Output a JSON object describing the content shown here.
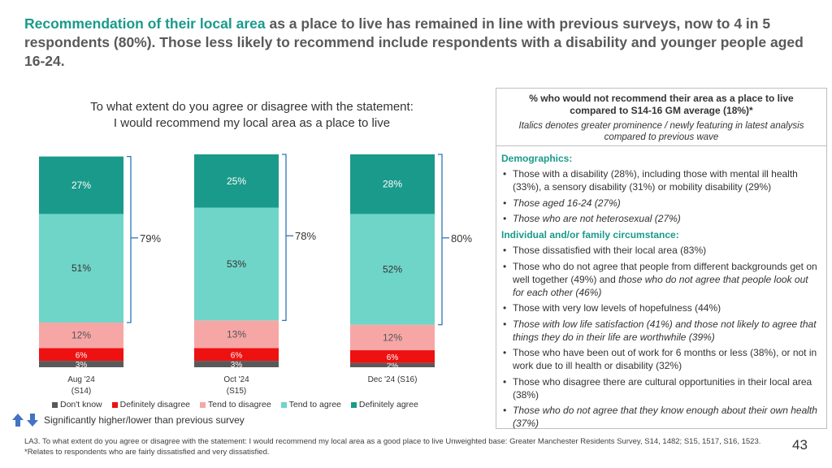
{
  "headline": {
    "accent": "Recommendation of their local area",
    "rest": " as a place to live has remained in line with previous surveys, now to 4 in 5 respondents (80%). Those less likely to recommend include respondents with a disability and younger people aged 16-24."
  },
  "question": {
    "line1": "To what extent do you agree or disagree with the statement:",
    "line2": "I would recommend my local area as a place to live"
  },
  "colors": {
    "dont_know": "#595959",
    "definitely_disagree": "#ee1111",
    "tend_to_disagree": "#f7a6a6",
    "tend_to_agree": "#6fd5c8",
    "definitely_agree": "#1a9a8a",
    "accent": "#1a9a8a"
  },
  "chart_data": {
    "type": "bar",
    "stacked": true,
    "categories": [
      {
        "line1": "Aug '24",
        "line2": "(S14)"
      },
      {
        "line1": "Oct '24",
        "line2": "(S15)"
      },
      {
        "line1": "Dec '24 (S16)",
        "line2": ""
      }
    ],
    "series": [
      {
        "name": "Don't know",
        "values": [
          3,
          3,
          2
        ],
        "labels": [
          "3%",
          "3%",
          "2%"
        ]
      },
      {
        "name": "Definitely disagree",
        "values": [
          6,
          6,
          6
        ],
        "labels": [
          "6%",
          "6%",
          "6%"
        ]
      },
      {
        "name": "Tend to disagree",
        "values": [
          12,
          13,
          12
        ],
        "labels": [
          "12%",
          "13%",
          "12%"
        ]
      },
      {
        "name": "Tend to agree",
        "values": [
          51,
          53,
          52
        ],
        "labels": [
          "51%",
          "53%",
          "52%"
        ]
      },
      {
        "name": "Definitely agree",
        "values": [
          27,
          25,
          28
        ],
        "labels": [
          "27%",
          "25%",
          "28%"
        ]
      }
    ],
    "net_agree": [
      79,
      78,
      80
    ],
    "net_agree_labels": [
      "79%",
      "78%",
      "80%"
    ],
    "ylim": [
      0,
      100
    ]
  },
  "significance_note": "Significantly higher/lower than previous survey",
  "panel": {
    "title": "% who would not recommend their area as a place to live compared to S14-16 GM average (18%)*",
    "note": "Italics denotes greater prominence / newly featuring in latest analysis compared to previous wave",
    "sections": [
      {
        "heading": "Demographics:",
        "items": [
          {
            "text": "Those with a disability (28%), including those with mental ill health (33%), a sensory disability (31%) or mobility disability (29%)",
            "italic": false
          },
          {
            "text": "Those aged 16-24 (27%)",
            "italic": true
          },
          {
            "text": "Those who are not heterosexual (27%)",
            "italic": true
          }
        ]
      },
      {
        "heading": "Individual and/or family circumstance:",
        "items": [
          {
            "text": "Those dissatisfied with their local area (83%)",
            "italic": false
          },
          {
            "text": "Those who do not agree that people from different backgrounds get on well together (49%) and ",
            "italic_tail": "those who do not agree that people look out for each other (46%)",
            "italic": false
          },
          {
            "text": "Those with very low levels of hopefulness (44%)",
            "italic": false
          },
          {
            "text": "Those with low life satisfaction (41%) and those not likely to agree that things they do in their life are worthwhile (39%)",
            "italic": true
          },
          {
            "text": "Those who have been out of work for 6 months or less (38%), or not in work due to ill health or disability (32%)",
            "italic": false
          },
          {
            "text": "Those who disagree there are cultural opportunities in their local area (38%)",
            "italic": false
          },
          {
            "text": "Those who do not agree that they know enough about their own health (37%)",
            "italic": true
          }
        ]
      }
    ]
  },
  "footer": "LA3. To what extent do you agree or disagree with the statement: I would recommend my local area as a good place to live Unweighted base: Greater Manchester Residents Survey, S14, 1482; S15, 1517, S16, 1523. *Relates to respondents who are fairly dissatisfied and very dissatisfied.",
  "page_number": "43"
}
